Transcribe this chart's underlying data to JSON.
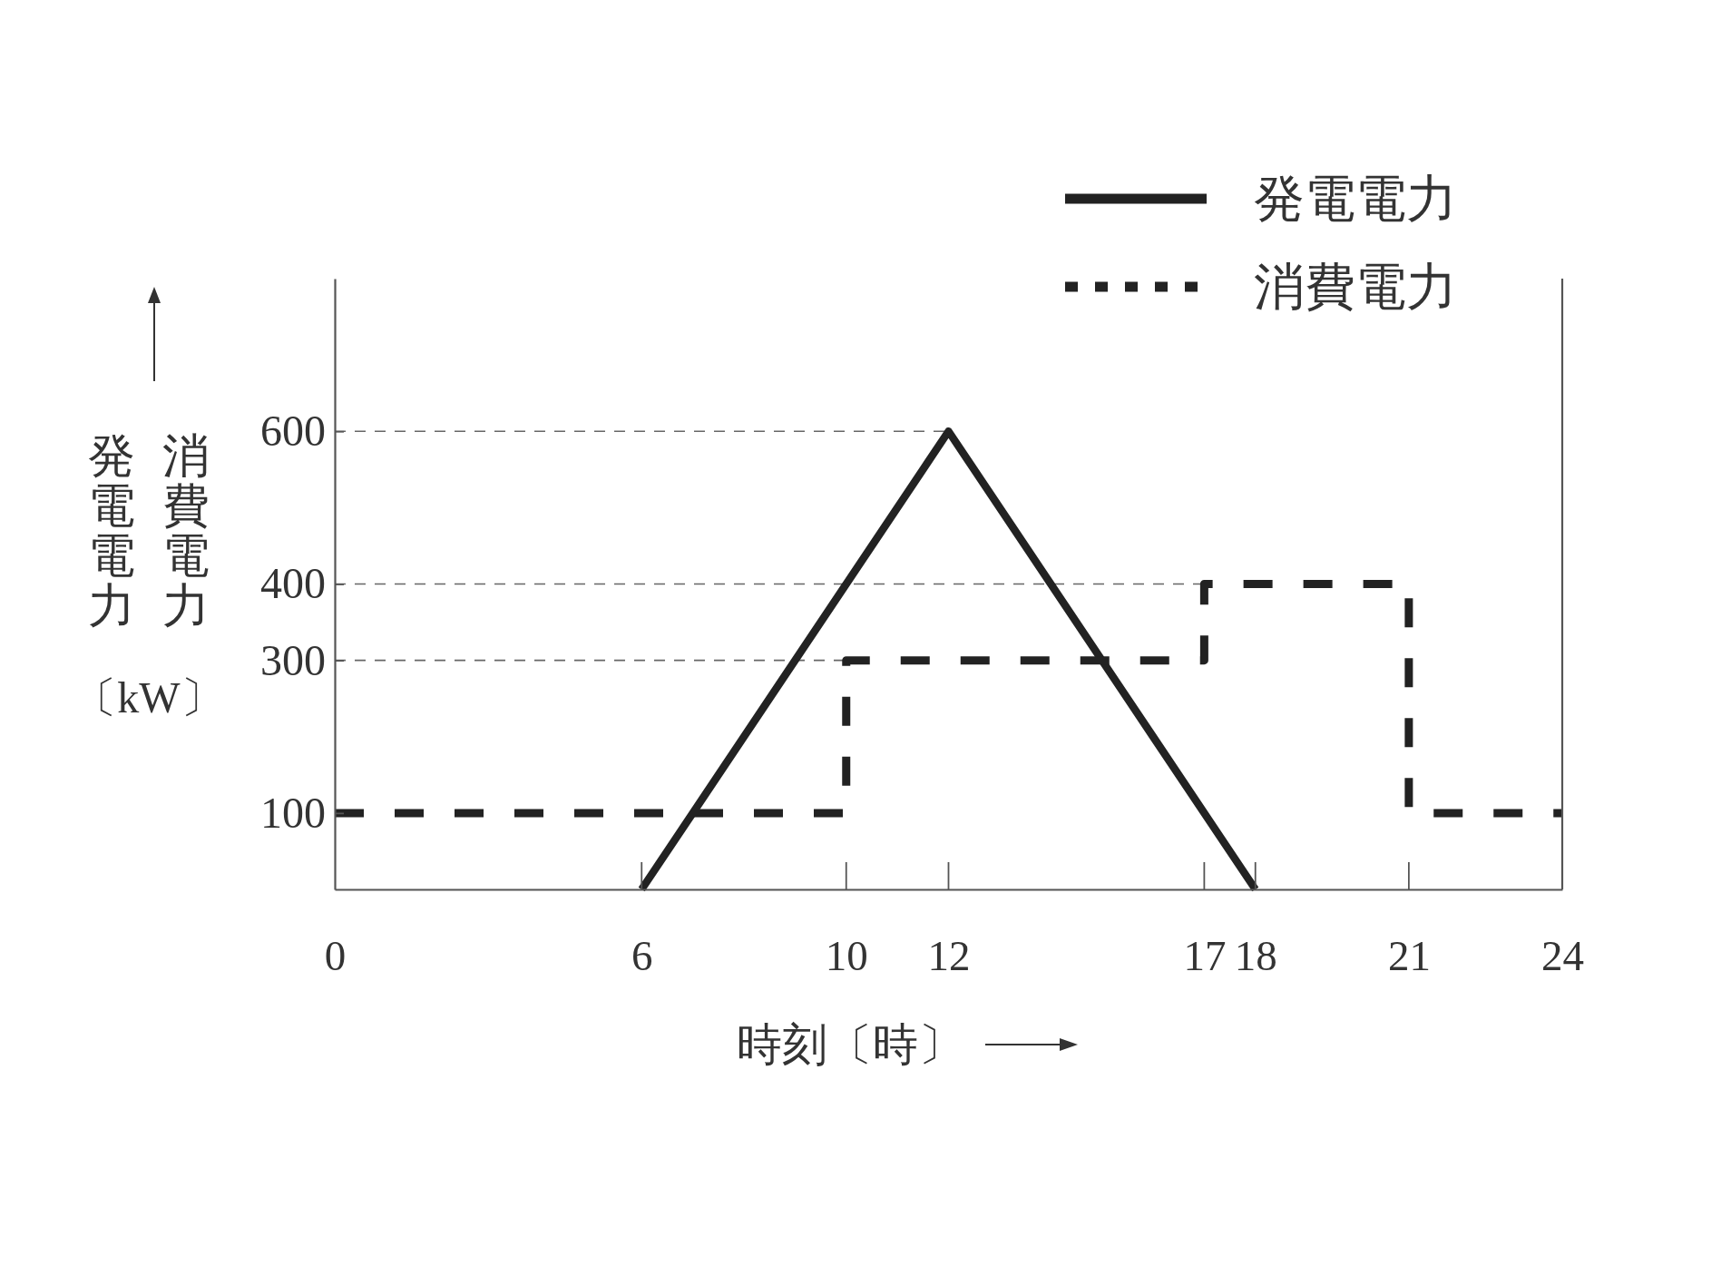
{
  "chart_data": {
    "type": "line",
    "xlabel": "時刻〔時〕",
    "ylabel": "発電電力消費電力〔kW〕",
    "xlim": [
      0,
      24
    ],
    "xticks": [
      0,
      6,
      10,
      12,
      17,
      18,
      21,
      24
    ],
    "ylim": [
      0,
      800
    ],
    "yticks": [
      100,
      300,
      400,
      600
    ],
    "series": [
      {
        "name": "発電電力",
        "type": "line",
        "color": "#222222",
        "x": [
          6,
          12,
          18
        ],
        "values": [
          0,
          600,
          0
        ],
        "line_style": "solid"
      },
      {
        "name": "消費電力",
        "type": "step",
        "color": "#222222",
        "x": [
          0,
          10,
          17,
          21,
          24
        ],
        "values": [
          100,
          300,
          400,
          100,
          100
        ],
        "line_style": "dashed"
      }
    ],
    "ref_lines": [
      {
        "axis": "y",
        "value": 600,
        "color": "#666666",
        "line_style": "dashed"
      },
      {
        "axis": "y",
        "value": 400,
        "color": "#666666",
        "line_style": "dashed"
      },
      {
        "axis": "y",
        "value": 300,
        "color": "#666666",
        "line_style": "dashed"
      }
    ],
    "legend": "top right"
  }
}
